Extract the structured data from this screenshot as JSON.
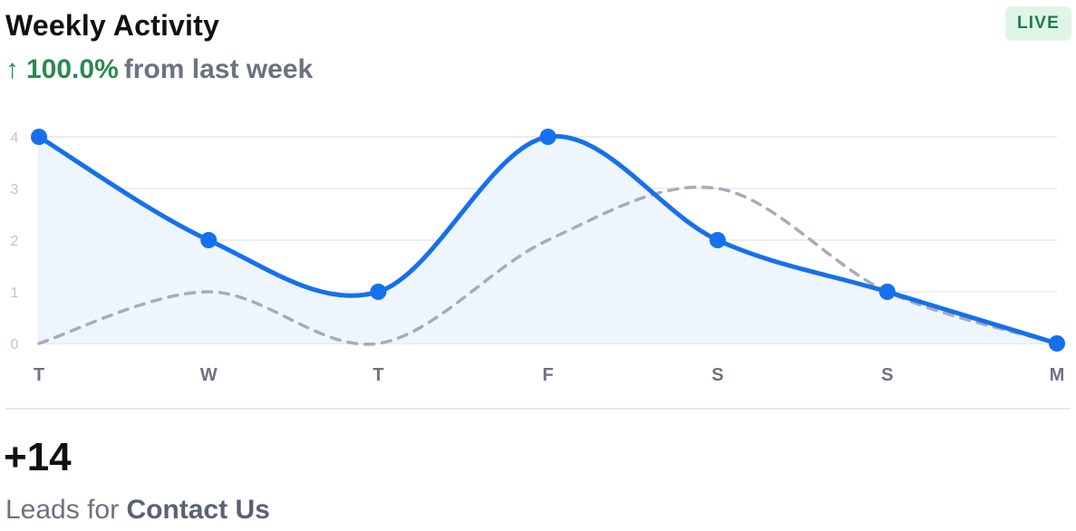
{
  "header": {
    "title": "Weekly Activity",
    "badge": "LIVE",
    "trend_arrow": "↑",
    "trend_percent": "100.0%",
    "trend_suffix": "from last week"
  },
  "colors": {
    "current_line": "#1570ef",
    "current_fill": "#eff5fd",
    "previous_line": "#a7acba",
    "grid": "#e5e7eb",
    "tick_text": "#c0c4cc",
    "positive": "#2a8a4e",
    "badge_bg": "#dff5e8"
  },
  "chart_data": {
    "type": "line",
    "categories": [
      "T",
      "W",
      "T",
      "F",
      "S",
      "S",
      "M"
    ],
    "series": [
      {
        "values": [
          4,
          2,
          1,
          4,
          2,
          1,
          0
        ],
        "style": "solid",
        "markers": true,
        "filled": true
      },
      {
        "values": [
          0,
          1,
          0,
          2,
          3,
          1,
          0
        ],
        "style": "dashed",
        "markers": false,
        "filled": false
      }
    ],
    "y_ticks": [
      "0",
      "1",
      "2",
      "3",
      "4"
    ],
    "ylim": [
      0,
      4
    ],
    "grid": true
  },
  "summary": {
    "total": "+14",
    "label_prefix": "Leads for",
    "label_target": "Contact Us"
  }
}
